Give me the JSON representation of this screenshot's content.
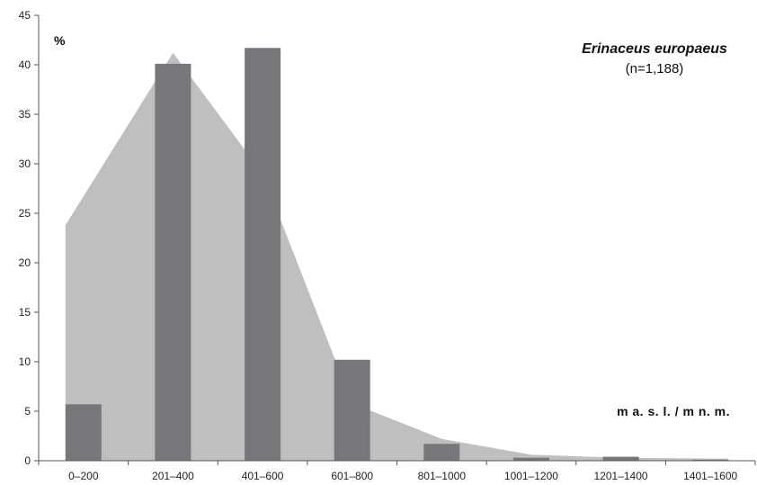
{
  "chart_data": {
    "type": "bar",
    "categories": [
      "0–200",
      "201–400",
      "401–600",
      "601–800",
      "801–1000",
      "1001–1200",
      "1201–1400",
      "1401–1600"
    ],
    "series": [
      {
        "values": [
          5.7,
          40.1,
          41.7,
          10.2,
          1.7,
          0.3,
          0.4,
          0.1
        ]
      }
    ],
    "area_series": {
      "values": [
        23.8,
        41.2,
        29.0,
        5.8,
        2.2,
        0.6,
        0.3,
        0.2
      ]
    },
    "title": "Erinaceus europaeus",
    "subtitle": "(n=1,188)",
    "ylabel": "%",
    "xlabel": "m a. s. l. / m n. m.",
    "ylim": [
      0,
      45
    ],
    "yticks": [
      0,
      5,
      10,
      15,
      20,
      25,
      30,
      35,
      40,
      45
    ],
    "grid": false,
    "colors": {
      "bar": "#77777b",
      "area": "#bfbfbf",
      "axis": "#555555"
    }
  }
}
